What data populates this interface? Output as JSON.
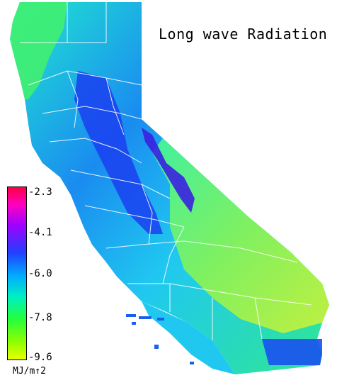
{
  "title": "Long wave Radiation",
  "legend": {
    "ticks": [
      "-2.3",
      "-4.1",
      "-6.0",
      "-7.8",
      "-9.6"
    ],
    "unit": "MJ/m↑2",
    "colors": [
      "#ff0040",
      "#ff00ff",
      "#8000ff",
      "#2040ff",
      "#00c0ff",
      "#00ff80",
      "#40ff00",
      "#c0ff00",
      "#e0ff00"
    ]
  },
  "map": {
    "region": "California",
    "fill_colors": {
      "north_coast": "#30f060",
      "central_valley": "#1a4cff",
      "sierra": "#3a1fe0",
      "southeast_desert": "#a8f040",
      "south_coast": "#1ad0f0",
      "south_east": "#1a60f0"
    }
  }
}
